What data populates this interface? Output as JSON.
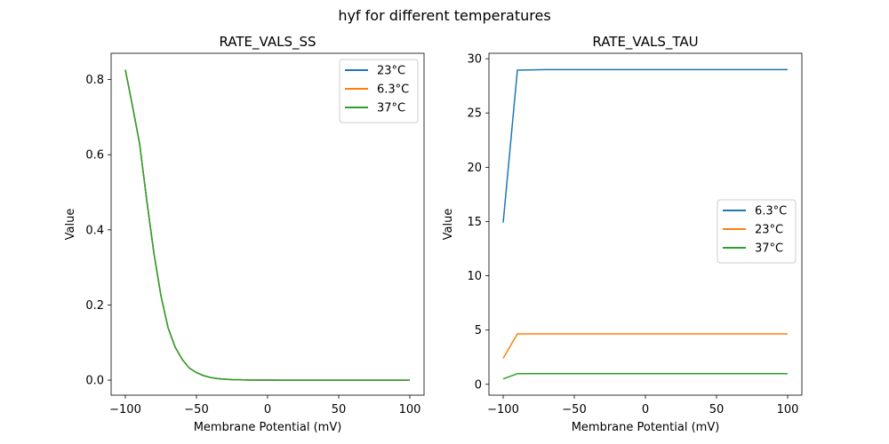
{
  "figure": {
    "suptitle": "hyf for different temperatures"
  },
  "chart_data": [
    {
      "type": "line",
      "title": "RATE_VALS_SS",
      "xlabel": "Membrane Potential (mV)",
      "ylabel": "Value",
      "xlim": [
        -110,
        110
      ],
      "ylim": [
        -0.04,
        0.87
      ],
      "xticks": [
        -100,
        -50,
        0,
        50,
        100
      ],
      "xtick_labels": [
        "−100",
        "−50",
        "0",
        "50",
        "100"
      ],
      "yticks": [
        0.0,
        0.2,
        0.4,
        0.6,
        0.8
      ],
      "ytick_labels": [
        "0.0",
        "0.2",
        "0.4",
        "0.6",
        "0.8"
      ],
      "grid": false,
      "legend_position": "upper right",
      "series": [
        {
          "name": "23°C",
          "color": "#1f77b4",
          "x": [
            -100,
            -95,
            -90,
            -85,
            -80,
            -75,
            -70,
            -65,
            -60,
            -55,
            -50,
            -45,
            -40,
            -35,
            -30,
            -25,
            -20,
            -15,
            -10,
            -5,
            0,
            10,
            20,
            30,
            40,
            50,
            60,
            70,
            80,
            90,
            100
          ],
          "y": [
            0.826,
            0.73,
            0.63,
            0.48,
            0.34,
            0.225,
            0.14,
            0.088,
            0.055,
            0.032,
            0.02,
            0.012,
            0.007,
            0.004,
            0.0025,
            0.0015,
            0.001,
            0.0006,
            0.0003,
            0.0002,
            0.0001,
            0.0,
            0.0,
            0.0,
            0.0,
            0.0,
            0.0,
            0.0,
            0.0,
            0.0,
            0.0
          ]
        },
        {
          "name": "6.3°C",
          "color": "#ff7f0e",
          "x": [
            -100,
            -95,
            -90,
            -85,
            -80,
            -75,
            -70,
            -65,
            -60,
            -55,
            -50,
            -45,
            -40,
            -35,
            -30,
            -25,
            -20,
            -15,
            -10,
            -5,
            0,
            10,
            20,
            30,
            40,
            50,
            60,
            70,
            80,
            90,
            100
          ],
          "y": [
            0.826,
            0.73,
            0.63,
            0.48,
            0.34,
            0.225,
            0.14,
            0.088,
            0.055,
            0.032,
            0.02,
            0.012,
            0.007,
            0.004,
            0.0025,
            0.0015,
            0.001,
            0.0006,
            0.0003,
            0.0002,
            0.0001,
            0.0,
            0.0,
            0.0,
            0.0,
            0.0,
            0.0,
            0.0,
            0.0,
            0.0,
            0.0
          ]
        },
        {
          "name": "37°C",
          "color": "#2ca02c",
          "x": [
            -100,
            -95,
            -90,
            -85,
            -80,
            -75,
            -70,
            -65,
            -60,
            -55,
            -50,
            -45,
            -40,
            -35,
            -30,
            -25,
            -20,
            -15,
            -10,
            -5,
            0,
            10,
            20,
            30,
            40,
            50,
            60,
            70,
            80,
            90,
            100
          ],
          "y": [
            0.826,
            0.73,
            0.63,
            0.48,
            0.34,
            0.225,
            0.14,
            0.088,
            0.055,
            0.032,
            0.02,
            0.012,
            0.007,
            0.004,
            0.0025,
            0.0015,
            0.001,
            0.0006,
            0.0003,
            0.0002,
            0.0001,
            0.0,
            0.0,
            0.0,
            0.0,
            0.0,
            0.0,
            0.0,
            0.0,
            0.0,
            0.0
          ]
        }
      ]
    },
    {
      "type": "line",
      "title": "RATE_VALS_TAU",
      "xlabel": "Membrane Potential (mV)",
      "ylabel": "Value",
      "xlim": [
        -110,
        110
      ],
      "ylim": [
        -1.0,
        30.5
      ],
      "xticks": [
        -100,
        -50,
        0,
        50,
        100
      ],
      "xtick_labels": [
        "−100",
        "−50",
        "0",
        "50",
        "100"
      ],
      "yticks": [
        0,
        5,
        10,
        15,
        20,
        25,
        30
      ],
      "ytick_labels": [
        "0",
        "5",
        "10",
        "15",
        "20",
        "25",
        "30"
      ],
      "grid": false,
      "legend_position": "center right",
      "series": [
        {
          "name": "6.3°C",
          "color": "#1f77b4",
          "x": [
            -100,
            -90,
            -70,
            -50,
            0,
            50,
            100
          ],
          "y": [
            14.9,
            28.95,
            29.0,
            29.0,
            29.0,
            29.0,
            29.0
          ]
        },
        {
          "name": "23°C",
          "color": "#ff7f0e",
          "x": [
            -100,
            -90,
            -70,
            -50,
            0,
            50,
            100
          ],
          "y": [
            2.4,
            4.65,
            4.65,
            4.65,
            4.65,
            4.65,
            4.65
          ]
        },
        {
          "name": "37°C",
          "color": "#2ca02c",
          "x": [
            -100,
            -90,
            -70,
            -50,
            0,
            50,
            100
          ],
          "y": [
            0.5,
            0.98,
            0.98,
            0.98,
            0.98,
            0.98,
            0.98
          ]
        }
      ]
    }
  ]
}
